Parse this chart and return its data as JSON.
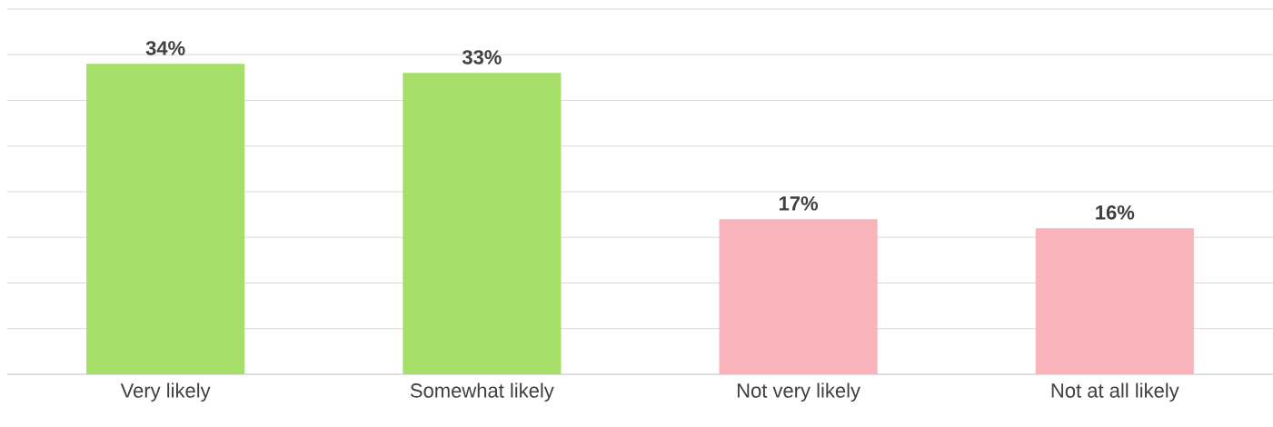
{
  "chart_data": {
    "type": "bar",
    "categories": [
      "Very likely",
      "Somewhat likely",
      "Not very likely",
      "Not at all likely"
    ],
    "values": [
      34,
      33,
      17,
      16
    ],
    "value_labels": [
      "34%",
      "33%",
      "17%",
      "16%"
    ],
    "colors": [
      "#a6de6a",
      "#a6de6a",
      "#f8b3bb",
      "#f8b3bb"
    ],
    "ylim": [
      0,
      40
    ],
    "yticks": [
      {
        "value": 0,
        "label": null
      },
      {
        "value": 5,
        "label": null
      },
      {
        "value": 10,
        "label": null
      },
      {
        "value": 15,
        "label": null
      },
      {
        "value": 20,
        "label": null
      },
      {
        "value": 25,
        "label": null
      },
      {
        "value": 30,
        "label": null
      },
      {
        "value": 35,
        "label": null
      },
      {
        "value": 40,
        "label": null
      }
    ],
    "tick_labels": "x",
    "grid": "y"
  }
}
